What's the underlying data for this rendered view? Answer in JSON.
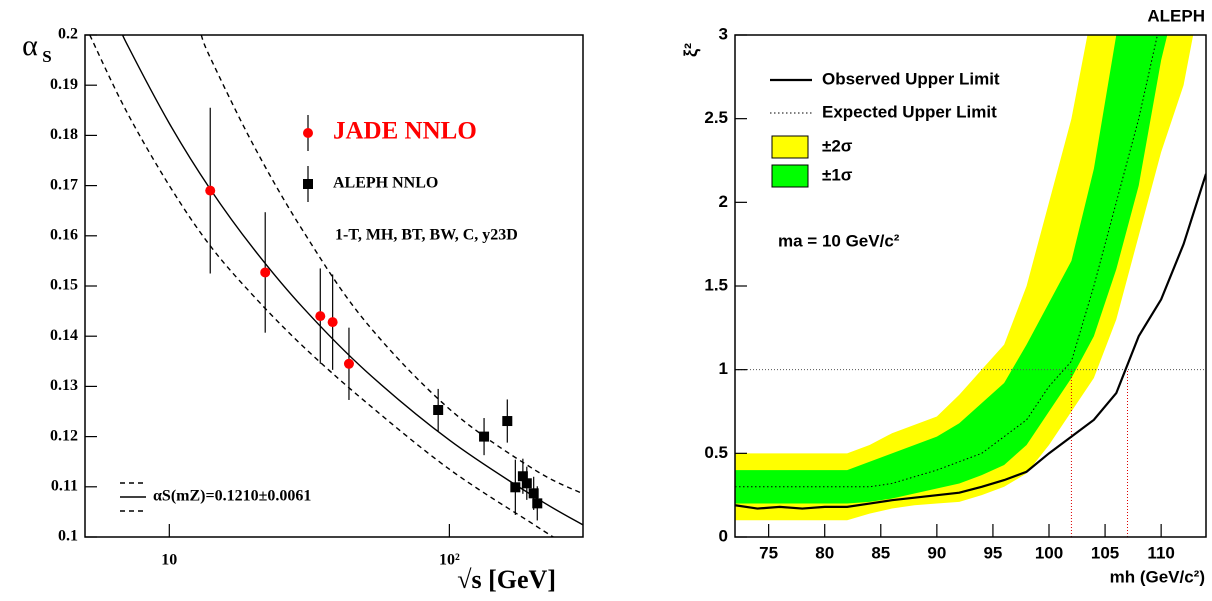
{
  "chart_data": [
    {
      "type": "scatter",
      "x_label": "√s [GeV]",
      "y_label": "α",
      "y_label_sub": "S",
      "annotation": "1-T, MH, BT, BW, C, y23D",
      "xscale": "log",
      "xlim": [
        5,
        300
      ],
      "ylim": [
        0.1,
        0.2
      ],
      "xticks": [
        10,
        {
          "value": 100,
          "label": "10²"
        }
      ],
      "yticks": [
        0.1,
        0.11,
        0.12,
        0.13,
        0.14,
        0.15,
        0.16,
        0.17,
        0.18,
        0.19,
        0.2
      ],
      "series": [
        {
          "name": "JADE NNLO",
          "color": "#ff0000",
          "marker": "circle",
          "x": [
            14,
            22,
            34.6,
            38.3,
            43.8
          ],
          "values": [
            0.169,
            0.1527,
            0.144,
            0.1428,
            0.1345
          ],
          "errors": [
            0.0165,
            0.012,
            0.0095,
            0.0095,
            0.0072
          ]
        },
        {
          "name": "ALEPH NNLO",
          "color": "#000000",
          "marker": "square",
          "x": [
            91.2,
            133,
            161,
            172,
            183,
            189,
            200,
            206
          ],
          "values": [
            0.1253,
            0.12,
            0.1231,
            0.1099,
            0.1121,
            0.1107,
            0.1087,
            0.1067
          ],
          "errors": [
            0.0042,
            0.0037,
            0.0043,
            0.0055,
            0.0035,
            0.0033,
            0.0033,
            0.0034
          ]
        }
      ],
      "curves": [
        {
          "style": "dashed",
          "color": "#000000",
          "x": [
            13,
            14,
            20,
            30,
            50,
            100,
            200,
            300
          ],
          "values": [
            0.2,
            0.1955,
            0.178,
            0.161,
            0.143,
            0.1255,
            0.1135,
            0.1086
          ]
        },
        {
          "name": "αS(mZ)=0.1210±0.0061",
          "style": "solid",
          "color": "#000000",
          "x": [
            6.9,
            7,
            10,
            14,
            20,
            30,
            50,
            100,
            200,
            300
          ],
          "values": [
            0.2,
            0.1986,
            0.1824,
            0.1693,
            0.1574,
            0.1457,
            0.1332,
            0.1193,
            0.1081,
            0.1024
          ]
        },
        {
          "style": "dashed",
          "color": "#000000",
          "x": [
            5.2,
            7,
            10,
            14,
            20,
            30,
            50,
            100,
            200,
            235
          ],
          "values": [
            0.2,
            0.185,
            0.17,
            0.158,
            0.148,
            0.138,
            0.127,
            0.1135,
            0.1025,
            0.1
          ]
        }
      ]
    },
    {
      "type": "line",
      "title": "ALEPH",
      "x_label": "mh (GeV/c²)",
      "y_label": "ξ²",
      "annotation": "ma = 10 GeV/c²",
      "xlim": [
        72,
        114
      ],
      "ylim": [
        0,
        3
      ],
      "xticks": [
        75,
        80,
        85,
        90,
        95,
        100,
        105,
        110
      ],
      "yticks": [
        0,
        0.5,
        1,
        1.5,
        2,
        2.5,
        3
      ],
      "hline": 1,
      "vlines": [
        102,
        107
      ],
      "x": [
        72,
        74,
        76,
        78,
        80,
        82,
        84,
        86,
        88,
        90,
        92,
        94,
        96,
        98,
        100,
        102,
        104,
        106,
        108,
        110,
        112,
        114
      ],
      "series": [
        {
          "name": "Observed Upper Limit",
          "color": "#000000",
          "style": "solid",
          "values": [
            0.19,
            0.17,
            0.18,
            0.17,
            0.18,
            0.18,
            0.2,
            0.22,
            0.235,
            0.25,
            0.265,
            0.3,
            0.34,
            0.39,
            0.5,
            0.6,
            0.7,
            0.86,
            1.2,
            1.42,
            1.75,
            2.17
          ]
        },
        {
          "name": "Expected Upper Limit",
          "color": "#000000",
          "style": "dotted",
          "values": [
            0.3,
            0.3,
            0.3,
            0.3,
            0.3,
            0.3,
            0.3,
            0.32,
            0.36,
            0.4,
            0.45,
            0.5,
            0.6,
            0.7,
            0.9,
            1.05,
            1.5,
            2.0,
            2.5,
            3.1,
            null,
            null
          ]
        }
      ],
      "bands": [
        {
          "name": "±2σ",
          "color": "#ffff00",
          "low": [
            0.1,
            0.1,
            0.1,
            0.1,
            0.1,
            0.1,
            0.14,
            0.17,
            0.19,
            0.2,
            0.21,
            0.25,
            0.3,
            0.38,
            0.55,
            0.75,
            0.95,
            1.3,
            1.8,
            2.3,
            2.7,
            3.4
          ],
          "high": [
            0.5,
            0.5,
            0.5,
            0.5,
            0.5,
            0.5,
            0.55,
            0.62,
            0.67,
            0.72,
            0.85,
            1.0,
            1.15,
            1.5,
            2.0,
            2.5,
            3.2,
            null,
            null,
            null,
            null,
            null
          ]
        },
        {
          "name": "±1σ",
          "color": "#00ff00",
          "low": [
            0.2,
            0.2,
            0.2,
            0.2,
            0.2,
            0.2,
            0.21,
            0.23,
            0.26,
            0.29,
            0.32,
            0.37,
            0.43,
            0.55,
            0.75,
            0.95,
            1.2,
            1.6,
            2.1,
            2.85,
            3.4,
            null
          ],
          "high": [
            0.4,
            0.4,
            0.4,
            0.4,
            0.4,
            0.4,
            0.45,
            0.5,
            0.55,
            0.6,
            0.68,
            0.8,
            0.92,
            1.15,
            1.4,
            1.65,
            2.2,
            3.0,
            null,
            null,
            null,
            null
          ]
        }
      ]
    }
  ]
}
